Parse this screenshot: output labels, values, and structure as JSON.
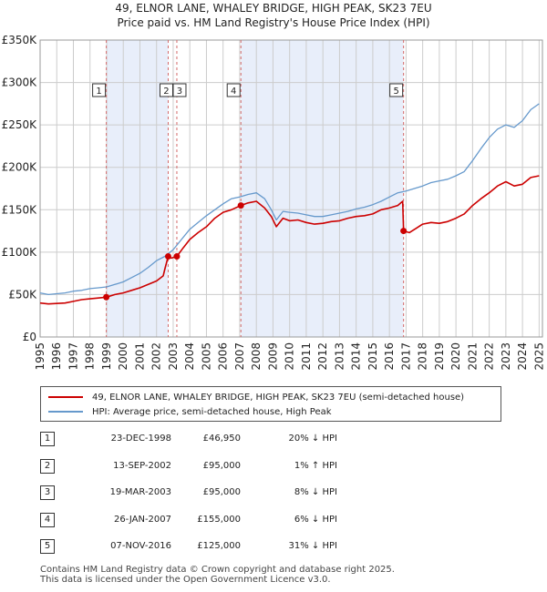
{
  "title_line1": "49, ELNOR LANE, WHALEY BRIDGE, HIGH PEAK, SK23 7EU",
  "title_line2": "Price paid vs. HM Land Registry's House Price Index (HPI)",
  "colors": {
    "property": "#cc0000",
    "hpi": "#6699cc",
    "shade": "#e8eefa",
    "grid": "#cccccc",
    "vline": "#d46a6a"
  },
  "chart_data": {
    "type": "line",
    "ylabel": "",
    "xlabel": "",
    "xlim": [
      1995.0,
      2025.2
    ],
    "ylim": [
      0,
      350000
    ],
    "y_ticks": [
      0,
      50000,
      100000,
      150000,
      200000,
      250000,
      300000,
      350000
    ],
    "y_tick_labels": [
      "£0",
      "£50K",
      "£100K",
      "£150K",
      "£200K",
      "£250K",
      "£300K",
      "£350K"
    ],
    "x_ticks": [
      1995,
      1996,
      1997,
      1998,
      1999,
      2000,
      2001,
      2002,
      2003,
      2004,
      2005,
      2006,
      2007,
      2008,
      2009,
      2010,
      2011,
      2012,
      2013,
      2014,
      2015,
      2016,
      2017,
      2018,
      2019,
      2020,
      2021,
      2022,
      2023,
      2024,
      2025
    ],
    "x_tick_labels": [
      "1995",
      "1996",
      "1997",
      "1998",
      "1999",
      "2000",
      "2001",
      "2002",
      "2003",
      "2004",
      "2005",
      "2006",
      "2007",
      "2008",
      "2009",
      "2010",
      "2011",
      "2012",
      "2013",
      "2014",
      "2015",
      "2016",
      "2017",
      "2018",
      "2019",
      "2020",
      "2021",
      "2022",
      "2023",
      "2024",
      "2025"
    ],
    "shaded_spans": [
      [
        1998.98,
        2002.7
      ],
      [
        2007.07,
        2016.85
      ]
    ],
    "series": [
      {
        "name": "49, ELNOR LANE, WHALEY BRIDGE, HIGH PEAK, SK23 7EU (semi-detached house)",
        "color_key": "property",
        "x": [
          1995.0,
          1995.5,
          1996.0,
          1996.5,
          1997.0,
          1997.5,
          1998.0,
          1998.5,
          1998.98,
          1999.5,
          2000.0,
          2000.5,
          2001.0,
          2001.5,
          2002.0,
          2002.4,
          2002.5,
          2002.7,
          2002.9,
          2003.22,
          2003.6,
          2004.0,
          2004.5,
          2005.0,
          2005.5,
          2006.0,
          2006.5,
          2007.07,
          2007.5,
          2008.0,
          2008.5,
          2008.9,
          2009.2,
          2009.6,
          2010.0,
          2010.5,
          2011.0,
          2011.5,
          2012.0,
          2012.5,
          2013.0,
          2013.5,
          2014.0,
          2014.5,
          2015.0,
          2015.5,
          2016.0,
          2016.5,
          2016.8,
          2016.85,
          2017.2,
          2017.6,
          2018.0,
          2018.5,
          2019.0,
          2019.5,
          2020.0,
          2020.5,
          2021.0,
          2021.5,
          2022.0,
          2022.5,
          2023.0,
          2023.5,
          2024.0,
          2024.5,
          2025.0
        ],
        "y": [
          40000,
          39000,
          39500,
          40000,
          42000,
          44000,
          45000,
          46000,
          46950,
          50000,
          52000,
          55000,
          58000,
          62000,
          66000,
          72000,
          80000,
          95000,
          93000,
          95000,
          105000,
          115000,
          123000,
          130000,
          140000,
          147000,
          150000,
          155000,
          158000,
          160000,
          152000,
          142000,
          130000,
          140000,
          137000,
          138000,
          135000,
          133000,
          134000,
          136000,
          137000,
          140000,
          142000,
          143000,
          145000,
          150000,
          152000,
          155000,
          160000,
          125000,
          123000,
          128000,
          133000,
          135000,
          134000,
          136000,
          140000,
          145000,
          155000,
          163000,
          170000,
          178000,
          183000,
          178000,
          180000,
          188000,
          190000
        ]
      },
      {
        "name": "HPI: Average price, semi-detached house, High Peak",
        "color_key": "hpi",
        "x": [
          1995.0,
          1995.5,
          1996.0,
          1996.5,
          1997.0,
          1997.5,
          1998.0,
          1998.5,
          1999.0,
          1999.5,
          2000.0,
          2000.5,
          2001.0,
          2001.5,
          2002.0,
          2002.5,
          2003.0,
          2003.5,
          2004.0,
          2004.5,
          2005.0,
          2005.5,
          2006.0,
          2006.5,
          2007.0,
          2007.5,
          2008.0,
          2008.5,
          2008.9,
          2009.2,
          2009.6,
          2010.0,
          2010.5,
          2011.0,
          2011.5,
          2012.0,
          2012.5,
          2013.0,
          2013.5,
          2014.0,
          2014.5,
          2015.0,
          2015.5,
          2016.0,
          2016.5,
          2017.0,
          2017.5,
          2018.0,
          2018.5,
          2019.0,
          2019.5,
          2020.0,
          2020.5,
          2021.0,
          2021.5,
          2022.0,
          2022.5,
          2023.0,
          2023.5,
          2024.0,
          2024.5,
          2025.0
        ],
        "y": [
          52000,
          50000,
          51000,
          52000,
          54000,
          55000,
          57000,
          58000,
          59000,
          62000,
          65000,
          70000,
          75000,
          82000,
          90000,
          95000,
          103000,
          115000,
          127000,
          135000,
          143000,
          150000,
          157000,
          163000,
          165000,
          168000,
          170000,
          163000,
          150000,
          138000,
          148000,
          147000,
          146000,
          144000,
          142000,
          142000,
          144000,
          146000,
          148000,
          151000,
          153000,
          156000,
          160000,
          165000,
          170000,
          172000,
          175000,
          178000,
          182000,
          184000,
          186000,
          190000,
          195000,
          208000,
          222000,
          235000,
          245000,
          250000,
          247000,
          255000,
          268000,
          275000
        ]
      }
    ],
    "sale_markers": [
      {
        "label": "1",
        "x": 1998.98,
        "y": 46950
      },
      {
        "label": "2",
        "x": 2002.7,
        "y": 95000
      },
      {
        "label": "3",
        "x": 2003.22,
        "y": 95000
      },
      {
        "label": "4",
        "x": 2007.07,
        "y": 155000
      },
      {
        "label": "5",
        "x": 2016.85,
        "y": 125000
      }
    ]
  },
  "legend": {
    "property_label": "49, ELNOR LANE, WHALEY BRIDGE, HIGH PEAK, SK23 7EU (semi-detached house)",
    "hpi_label": "HPI: Average price, semi-detached house, High Peak"
  },
  "sales": [
    {
      "num": "1",
      "date": "23-DEC-1998",
      "price": "£46,950",
      "hpi": "20% ↓ HPI"
    },
    {
      "num": "2",
      "date": "13-SEP-2002",
      "price": "£95,000",
      "hpi": "1% ↑ HPI"
    },
    {
      "num": "3",
      "date": "19-MAR-2003",
      "price": "£95,000",
      "hpi": "8% ↓ HPI"
    },
    {
      "num": "4",
      "date": "26-JAN-2007",
      "price": "£155,000",
      "hpi": "6% ↓ HPI"
    },
    {
      "num": "5",
      "date": "07-NOV-2016",
      "price": "£125,000",
      "hpi": "31% ↓ HPI"
    }
  ],
  "footer": {
    "line1": "Contains HM Land Registry data © Crown copyright and database right 2025.",
    "line2": "This data is licensed under the Open Government Licence v3.0."
  }
}
